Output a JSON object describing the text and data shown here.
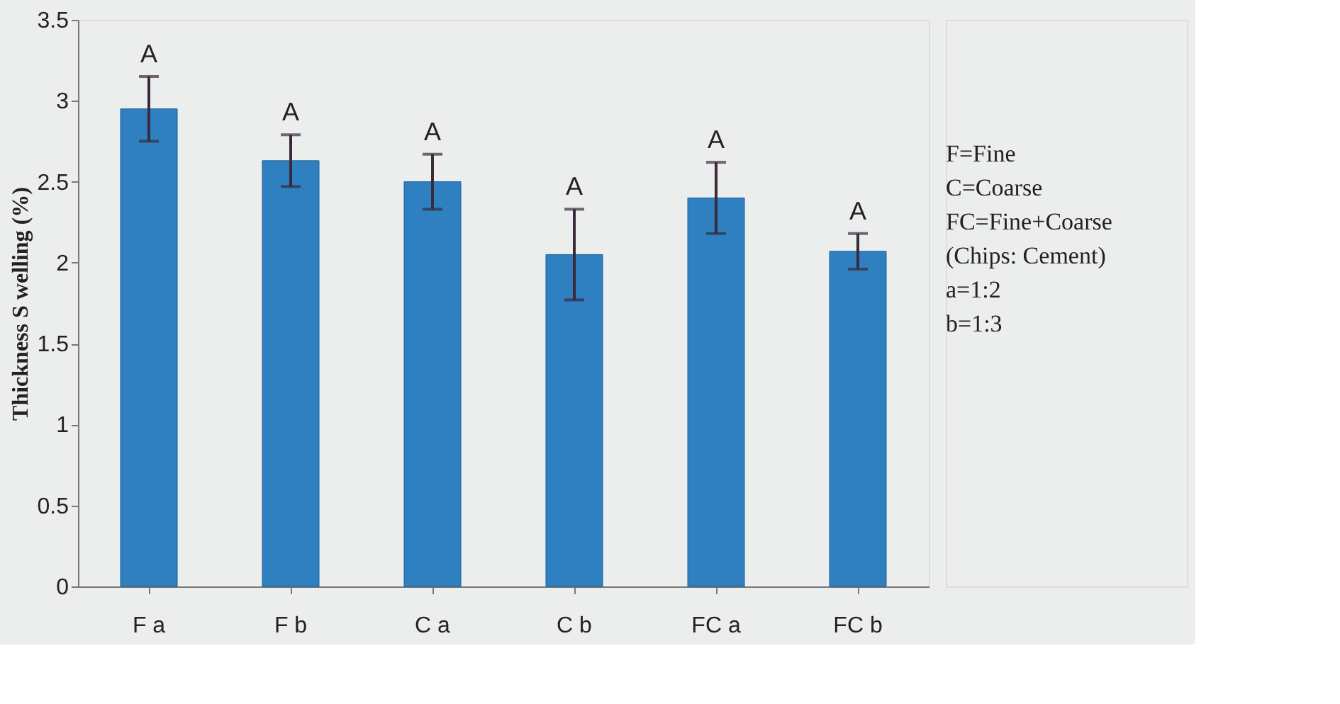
{
  "chart_data": {
    "type": "bar",
    "ylabel": "Thickness  S welling (%)",
    "categories": [
      "F a",
      "F b",
      "C a",
      "C b",
      "FC a",
      "FC b"
    ],
    "values": [
      2.95,
      2.63,
      2.5,
      2.05,
      2.4,
      2.07
    ],
    "errors": [
      0.2,
      0.16,
      0.17,
      0.28,
      0.22,
      0.11
    ],
    "color": "#2e80c0",
    "ylim": [
      0,
      3.5
    ],
    "yticks": [
      0,
      0.5,
      1,
      1.5,
      2,
      2.5,
      3,
      3.5
    ],
    "grid": false,
    "annotations": [
      {
        "text": "A",
        "x": "F a",
        "y": 3.15
      },
      {
        "text": "A",
        "x": "F b",
        "y": 2.79
      },
      {
        "text": "A",
        "x": "C a",
        "y": 2.67
      },
      {
        "text": "A",
        "x": "C b",
        "y": 2.33
      },
      {
        "text": "A",
        "x": "FC a",
        "y": 2.62
      },
      {
        "text": "A",
        "x": "FC b",
        "y": 2.18
      },
      "F=Fine",
      "C=Coarse",
      "FC=Fine+Coarse",
      "(Chips: Cement)",
      "a=1:2",
      "b=1:3"
    ]
  }
}
